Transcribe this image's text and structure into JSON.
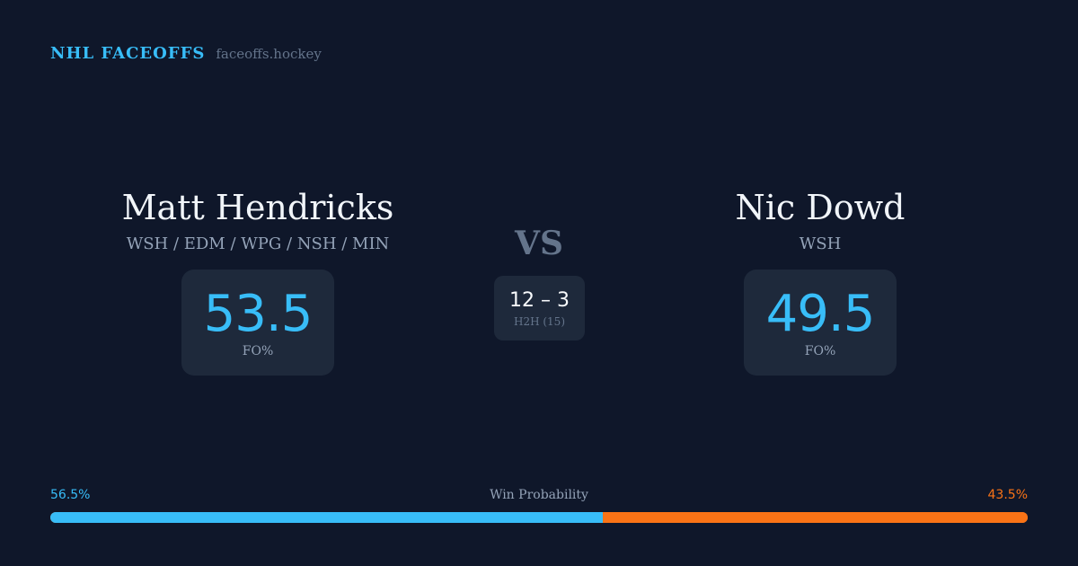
{
  "brand": {
    "name": "NHL FACEOFFS",
    "site": "faceoffs.hockey"
  },
  "player1": {
    "name": "Matt Hendricks",
    "teams": "WSH / EDM / WPG / NSH / MIN",
    "fo_pct": "53.5",
    "fo_label": "FO%"
  },
  "player2": {
    "name": "Nic Dowd",
    "teams": "WSH",
    "fo_pct": "49.5",
    "fo_label": "FO%"
  },
  "vs": "VS",
  "h2h": {
    "score": "12 – 3",
    "label": "H2H (15)"
  },
  "win_probability": {
    "label": "Win Probability",
    "left": "56.5%",
    "right": "43.5%",
    "left_value": 56.5,
    "right_value": 43.5
  },
  "colors": {
    "accent_left": "#38bdf8",
    "accent_right": "#f97316",
    "background": "#0f172a",
    "card": "#1e293b"
  }
}
